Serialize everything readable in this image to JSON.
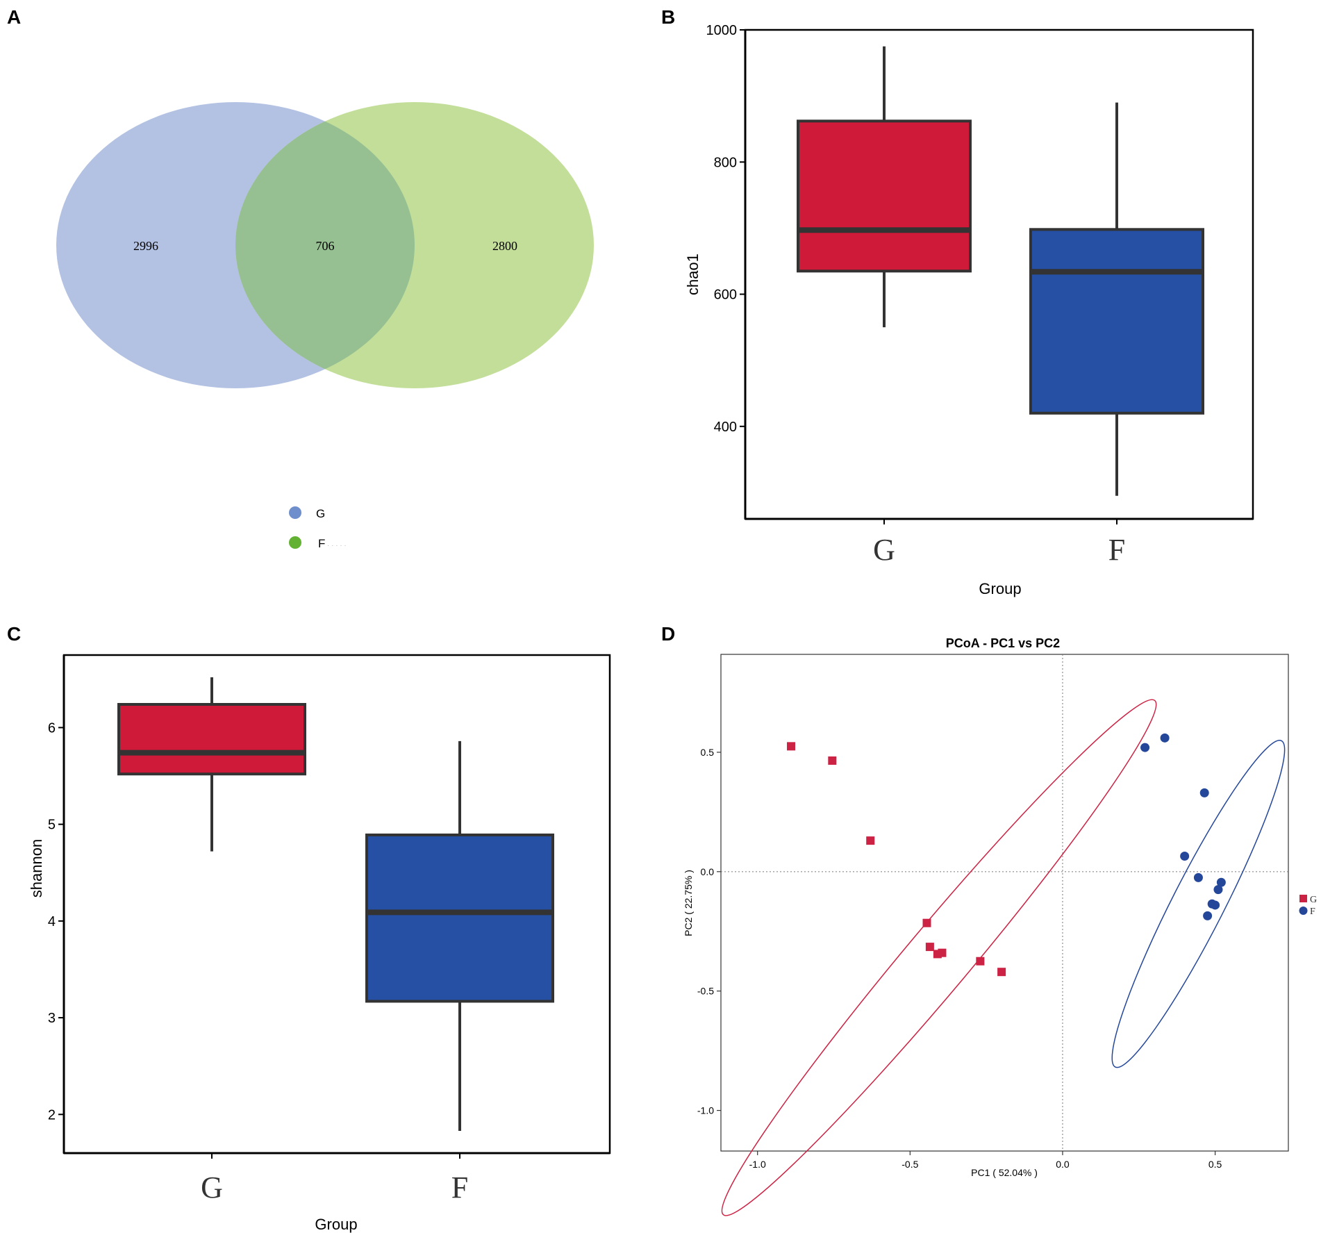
{
  "panels": {
    "a": "A",
    "b": "B",
    "c": "C",
    "d": "D"
  },
  "colors": {
    "g_box": "#cf1a3a",
    "f_box": "#2650a3",
    "venn_g": "#b3c2e3",
    "venn_f": "#c2de99",
    "venn_overlap": "#97c092",
    "legend_g": "#6e8fcc",
    "legend_f": "#62b132",
    "pcoa_g": "#cc2244",
    "pcoa_f": "#24479a"
  },
  "chart_data": [
    {
      "type": "venn",
      "panel": "A",
      "sets": [
        {
          "name": "G",
          "only": "2996"
        },
        {
          "name": "F",
          "only": "2800"
        }
      ],
      "intersection": "706",
      "legend": [
        "G",
        "F"
      ],
      "legend_faint": "· · · · ·"
    },
    {
      "type": "box",
      "panel": "B",
      "ylabel": "chao1",
      "xlabel": "Group",
      "ylim": [
        260,
        1000
      ],
      "yticks": [
        "400",
        "600",
        "800",
        "1000"
      ],
      "yticks_values": [
        400,
        600,
        800,
        1000
      ],
      "categories": [
        "G",
        "F"
      ],
      "boxes": [
        {
          "name": "G",
          "min": 550,
          "q1": 635,
          "median": 697,
          "q3": 862,
          "max": 975
        },
        {
          "name": "F",
          "min": 295,
          "q1": 420,
          "median": 634,
          "q3": 698,
          "max": 890
        }
      ]
    },
    {
      "type": "box",
      "panel": "C",
      "ylabel": "shannon",
      "xlabel": "Group",
      "ylim": [
        1.6,
        6.75
      ],
      "yticks": [
        "2",
        "3",
        "4",
        "5",
        "6"
      ],
      "yticks_values": [
        2,
        3,
        4,
        5,
        6
      ],
      "categories": [
        "G",
        "F"
      ],
      "boxes": [
        {
          "name": "G",
          "min": 4.72,
          "q1": 5.52,
          "median": 5.74,
          "q3": 6.24,
          "max": 6.52
        },
        {
          "name": "F",
          "min": 1.83,
          "q1": 3.17,
          "median": 4.09,
          "q3": 4.89,
          "max": 5.86
        }
      ]
    },
    {
      "type": "scatter",
      "panel": "D",
      "title": "PCoA - PC1 vs PC2",
      "xlabel": "PC1 ( 52.04% )",
      "ylabel": "PC2 ( 22.75% )",
      "xlim": [
        -1.12,
        0.74
      ],
      "ylim": [
        -1.17,
        0.91
      ],
      "xticks": [
        "-1.0",
        "-0.5",
        "0.0",
        "0.5"
      ],
      "xticks_values": [
        -1.0,
        -0.5,
        0.0,
        0.5
      ],
      "yticks": [
        "0.5",
        "0.0",
        "-0.5",
        "-1.0"
      ],
      "yticks_values": [
        0.5,
        0.0,
        -0.5,
        -1.0
      ],
      "legend": [
        "G",
        "F"
      ],
      "series": [
        {
          "name": "G",
          "marker": "square",
          "points": [
            [
              -0.89,
              0.525
            ],
            [
              -0.755,
              0.465
            ],
            [
              -0.63,
              0.13
            ],
            [
              -0.445,
              -0.215
            ],
            [
              -0.435,
              -0.315
            ],
            [
              -0.41,
              -0.345
            ],
            [
              -0.395,
              -0.34
            ],
            [
              -0.27,
              -0.375
            ],
            [
              -0.2,
              -0.42
            ]
          ],
          "ellipse": {
            "cx": -0.405,
            "cy": -0.36,
            "rx": 1.1,
            "ry": 0.105,
            "angle_deg": -50
          }
        },
        {
          "name": "F",
          "marker": "circle",
          "points": [
            [
              0.27,
              0.52
            ],
            [
              0.335,
              0.56
            ],
            [
              0.465,
              0.33
            ],
            [
              0.4,
              0.065
            ],
            [
              0.445,
              -0.025
            ],
            [
              0.52,
              -0.045
            ],
            [
              0.51,
              -0.075
            ],
            [
              0.49,
              -0.135
            ],
            [
              0.5,
              -0.14
            ],
            [
              0.475,
              -0.185
            ]
          ],
          "ellipse": {
            "cx": 0.445,
            "cy": -0.135,
            "rx": 0.6,
            "ry": 0.085,
            "angle_deg": -63
          }
        }
      ]
    }
  ]
}
